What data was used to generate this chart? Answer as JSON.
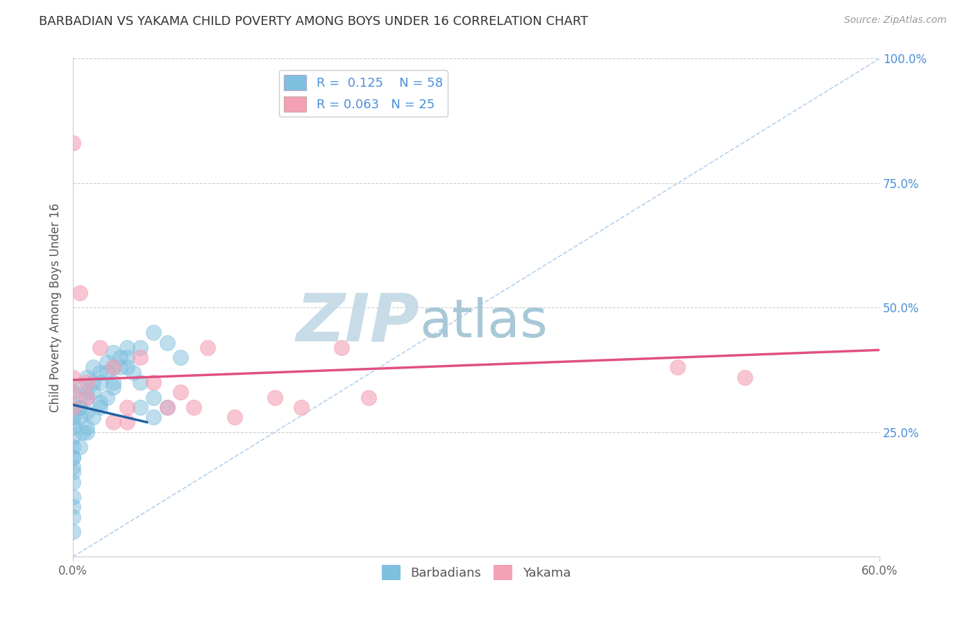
{
  "title": "BARBADIAN VS YAKAMA CHILD POVERTY AMONG BOYS UNDER 16 CORRELATION CHART",
  "source": "Source: ZipAtlas.com",
  "ylabel": "Child Poverty Among Boys Under 16",
  "xlim": [
    0.0,
    0.6
  ],
  "ylim": [
    0.0,
    1.0
  ],
  "barbadian_R": 0.125,
  "barbadian_N": 58,
  "yakama_R": 0.063,
  "yakama_N": 25,
  "barbadian_color": "#7fbfdf",
  "yakama_color": "#f4a0b5",
  "trendline_barbadian_color": "#2060a0",
  "trendline_yakama_color": "#e05080",
  "diagonal_color": "#aaccee",
  "background_color": "#ffffff",
  "grid_color": "#cccccc",
  "watermark_zip": "ZIP",
  "watermark_atlas": "atlas",
  "watermark_color_zip": "#c8dce8",
  "watermark_color_atlas": "#a8c8d8",
  "barbadian_label": "Barbadians",
  "yakama_label": "Yakama",
  "ytick_color": "#4a90d9",
  "barbadian_x": [
    0.0,
    0.0,
    0.0,
    0.0,
    0.0,
    0.0,
    0.0,
    0.0,
    0.0,
    0.0,
    0.005,
    0.005,
    0.007,
    0.01,
    0.01,
    0.01,
    0.015,
    0.02,
    0.02,
    0.025,
    0.03,
    0.03,
    0.035,
    0.04,
    0.04,
    0.05,
    0.05,
    0.06,
    0.06,
    0.07,
    0.0,
    0.0,
    0.0,
    0.0,
    0.005,
    0.005,
    0.01,
    0.01,
    0.015,
    0.015,
    0.02,
    0.025,
    0.03,
    0.035,
    0.04,
    0.045,
    0.05,
    0.06,
    0.07,
    0.08,
    0.0,
    0.0,
    0.005,
    0.01,
    0.015,
    0.02,
    0.025,
    0.03
  ],
  "barbadian_y": [
    0.27,
    0.24,
    0.22,
    0.2,
    0.18,
    0.15,
    0.12,
    0.1,
    0.08,
    0.05,
    0.3,
    0.28,
    0.25,
    0.32,
    0.29,
    0.26,
    0.33,
    0.35,
    0.31,
    0.37,
    0.38,
    0.34,
    0.4,
    0.42,
    0.38,
    0.35,
    0.3,
    0.28,
    0.32,
    0.3,
    0.33,
    0.31,
    0.28,
    0.26,
    0.34,
    0.3,
    0.36,
    0.33,
    0.38,
    0.35,
    0.37,
    0.39,
    0.41,
    0.38,
    0.4,
    0.37,
    0.42,
    0.45,
    0.43,
    0.4,
    0.2,
    0.17,
    0.22,
    0.25,
    0.28,
    0.3,
    0.32,
    0.35
  ],
  "yakama_x": [
    0.0,
    0.0,
    0.0,
    0.0,
    0.005,
    0.01,
    0.01,
    0.02,
    0.03,
    0.04,
    0.04,
    0.05,
    0.06,
    0.08,
    0.09,
    0.1,
    0.12,
    0.15,
    0.17,
    0.2,
    0.22,
    0.45,
    0.5,
    0.03,
    0.07
  ],
  "yakama_y": [
    0.83,
    0.36,
    0.33,
    0.3,
    0.53,
    0.35,
    0.32,
    0.42,
    0.38,
    0.3,
    0.27,
    0.4,
    0.35,
    0.33,
    0.3,
    0.42,
    0.28,
    0.32,
    0.3,
    0.42,
    0.32,
    0.38,
    0.36,
    0.27,
    0.3
  ],
  "trendline_barb_x0": 0.0,
  "trendline_barb_y0": 0.305,
  "trendline_barb_x1": 0.055,
  "trendline_barb_y1": 0.27,
  "trendline_yak_x0": 0.0,
  "trendline_yak_y0": 0.355,
  "trendline_yak_x1": 0.6,
  "trendline_yak_y1": 0.415
}
